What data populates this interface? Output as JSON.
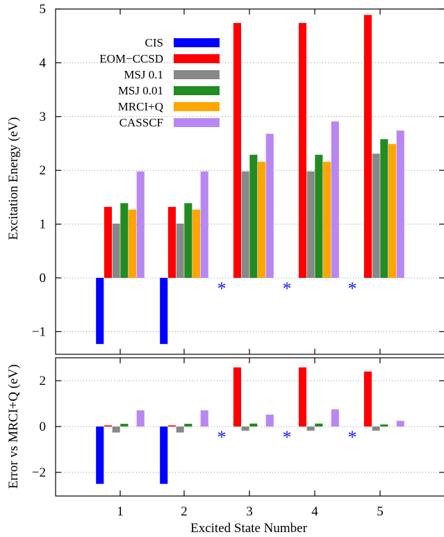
{
  "chart_data": [
    {
      "type": "bar",
      "panel": "top",
      "xlabel": "",
      "ylabel": "Excitation Energy (eV)",
      "ylim": [
        -1.3,
        5
      ],
      "yticks": [
        -1,
        0,
        1,
        2,
        3,
        4,
        5
      ],
      "grid": "horizontal-dotted",
      "legend_position": "top-left",
      "categories": [
        "1",
        "2",
        "3",
        "4",
        "5"
      ],
      "series": [
        {
          "name": "CIS",
          "color": "#0000ff",
          "values": [
            -1.23,
            -1.23,
            null,
            null,
            null
          ]
        },
        {
          "name": "EOM−CCSD",
          "color": "#ff0000",
          "values": [
            1.32,
            1.32,
            4.74,
            4.74,
            4.89
          ]
        },
        {
          "name": "MSJ 0.1",
          "color": "#888888",
          "values": [
            1.01,
            1.01,
            1.98,
            1.98,
            2.31
          ]
        },
        {
          "name": "MSJ 0.01",
          "color": "#228b22",
          "values": [
            1.39,
            1.39,
            2.29,
            2.29,
            2.58
          ]
        },
        {
          "name": "MRCI+Q",
          "color": "#ffa500",
          "values": [
            1.27,
            1.27,
            2.16,
            2.16,
            2.49
          ]
        },
        {
          "name": "CASSCF",
          "color": "#b987f2",
          "values": [
            1.98,
            1.98,
            2.68,
            2.91,
            2.74
          ]
        }
      ],
      "markers": {
        "symbol": "*",
        "color": "#1a1aff",
        "categories": [
          "3",
          "4",
          "5"
        ]
      }
    },
    {
      "type": "bar",
      "panel": "bottom",
      "xlabel": "Excited State Number",
      "ylabel": "Error vs MRCI+Q (eV)",
      "ylim": [
        -3,
        3
      ],
      "yticks": [
        -2,
        0,
        2
      ],
      "grid": "horizontal-dotted",
      "categories": [
        "1",
        "2",
        "3",
        "4",
        "5"
      ],
      "series": [
        {
          "color": "#0000ff",
          "values": [
            -2.5,
            -2.5,
            null,
            null,
            null
          ]
        },
        {
          "color": "#ff0000",
          "values": [
            0.05,
            0.05,
            2.58,
            2.58,
            2.4
          ]
        },
        {
          "color": "#888888",
          "values": [
            -0.26,
            -0.26,
            -0.18,
            -0.18,
            -0.18
          ]
        },
        {
          "color": "#228b22",
          "values": [
            0.12,
            0.12,
            0.13,
            0.13,
            0.09
          ]
        },
        {
          "color": "#ffa500",
          "values": [
            0,
            0,
            0,
            0,
            0
          ]
        },
        {
          "color": "#b987f2",
          "values": [
            0.71,
            0.71,
            0.52,
            0.75,
            0.25
          ]
        }
      ],
      "markers": {
        "symbol": "*",
        "color": "#1a1aff",
        "categories": [
          "3",
          "4",
          "5"
        ]
      }
    }
  ]
}
